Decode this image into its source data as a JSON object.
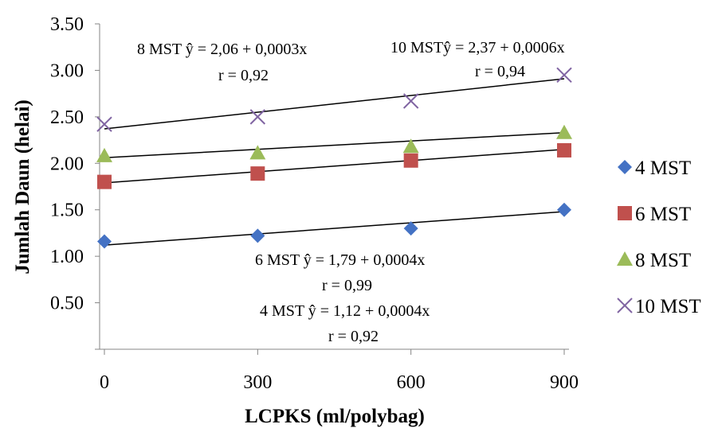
{
  "chart_data": {
    "type": "scatter",
    "title": "",
    "xlabel": "LCPKS (ml/polybag)",
    "ylabel": "Jumlah Daun (helai)",
    "x": [
      0,
      300,
      600,
      900
    ],
    "xlim": [
      0,
      900
    ],
    "ylim": [
      0,
      3.5
    ],
    "x_ticks": [
      "0",
      "300",
      "600",
      "900"
    ],
    "y_ticks": [
      "3.50",
      "3.00",
      "2.50",
      "2.00",
      "1.50",
      "1.00",
      "0.50"
    ],
    "grid": false,
    "legend_position": "right",
    "series": [
      {
        "name": "4 MST",
        "marker": "diamond",
        "color": "#4472C4",
        "values": [
          1.16,
          1.22,
          1.3,
          1.5
        ],
        "trend": {
          "intercept": 1.12,
          "slope": 0.0004
        }
      },
      {
        "name": "6 MST",
        "marker": "square",
        "color": "#C0504D",
        "values": [
          1.8,
          1.89,
          2.03,
          2.14
        ],
        "trend": {
          "intercept": 1.79,
          "slope": 0.0004
        }
      },
      {
        "name": "8 MST",
        "marker": "triangle",
        "color": "#9BBB59",
        "values": [
          2.08,
          2.11,
          2.18,
          2.33
        ],
        "trend": {
          "intercept": 2.06,
          "slope": 0.0003
        }
      },
      {
        "name": "10 MST",
        "marker": "x",
        "color": "#8064A2",
        "values": [
          2.42,
          2.5,
          2.67,
          2.95
        ],
        "trend": {
          "intercept": 2.37,
          "slope": 0.0006
        }
      }
    ],
    "annotations": [
      {
        "eq": "8 MST ŷ =  2,06 + 0,0003x",
        "r": "r = 0,92"
      },
      {
        "eq": "10 MSTŷ =  2,37 + 0,0006x",
        "r": "r = 0,94"
      },
      {
        "eq": "6 MST ŷ =  1,79 + 0,0004x",
        "r": "r = 0,99"
      },
      {
        "eq": "4 MST ŷ =  1,12 + 0,0004x",
        "r": "r = 0,92"
      }
    ]
  }
}
